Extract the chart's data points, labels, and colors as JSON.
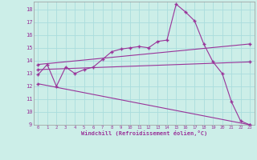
{
  "xlabel": "Windchill (Refroidissement éolien,°C)",
  "bg_color": "#cceee8",
  "grid_color": "#aadddd",
  "line_color": "#993399",
  "xlim": [
    -0.5,
    23.5
  ],
  "ylim": [
    9,
    18.6
  ],
  "xticks": [
    0,
    1,
    2,
    3,
    4,
    5,
    6,
    7,
    8,
    9,
    10,
    11,
    12,
    13,
    14,
    15,
    16,
    17,
    18,
    19,
    20,
    21,
    22,
    23
  ],
  "yticks": [
    9,
    10,
    11,
    12,
    13,
    14,
    15,
    16,
    17,
    18
  ],
  "line1_x": [
    0,
    1,
    2,
    3,
    4,
    5,
    6,
    7,
    8,
    9,
    10,
    11,
    12,
    13,
    14,
    15,
    16,
    17,
    18,
    19,
    20,
    21,
    22,
    23
  ],
  "line1_y": [
    12.9,
    13.7,
    12.0,
    13.5,
    13.0,
    13.3,
    13.5,
    14.1,
    14.7,
    14.9,
    15.0,
    15.1,
    15.0,
    15.5,
    15.6,
    18.4,
    17.8,
    17.1,
    15.3,
    13.9,
    13.0,
    10.8,
    9.3,
    9.0
  ],
  "line2_x": [
    0,
    23
  ],
  "line2_y": [
    13.7,
    15.3
  ],
  "line3_x": [
    0,
    23
  ],
  "line3_y": [
    13.3,
    13.9
  ],
  "line4_x": [
    0,
    23
  ],
  "line4_y": [
    12.2,
    9.0
  ]
}
